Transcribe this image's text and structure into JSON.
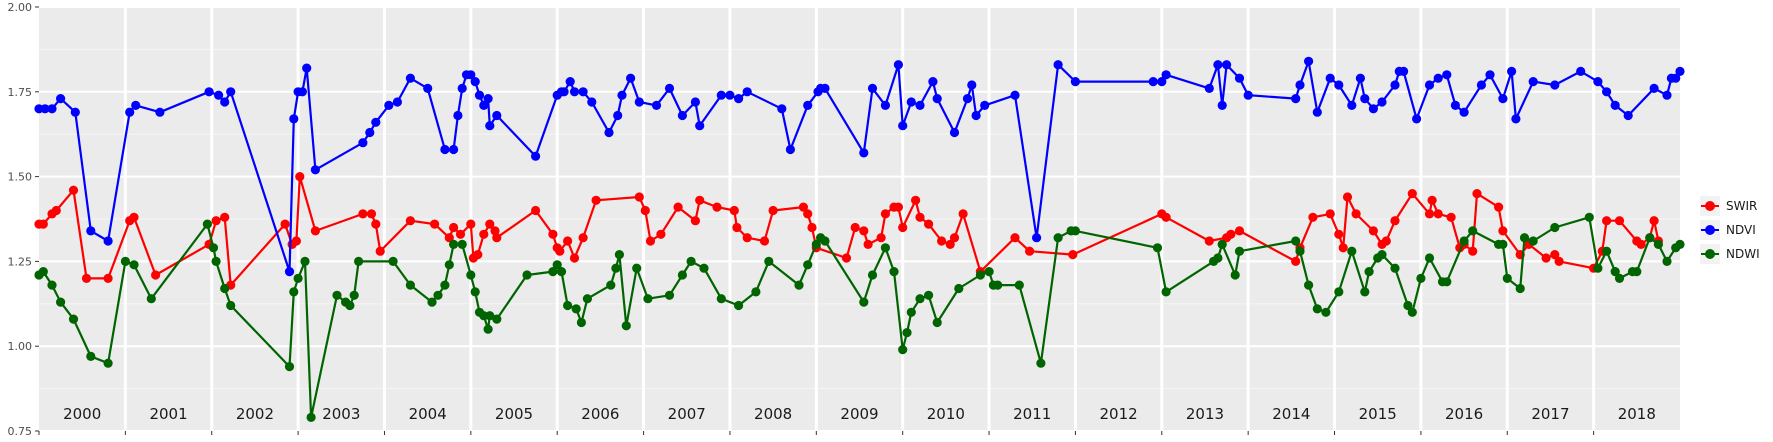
{
  "chart_data": {
    "type": "line",
    "title": "",
    "xlabel": "",
    "ylabel": "",
    "xlim": [
      2000,
      2019
    ],
    "ylim": [
      0.75,
      2.0
    ],
    "y_ticks": [
      "0.75",
      "1.00",
      "1.25",
      "1.50",
      "1.75",
      "2.00"
    ],
    "year_labels": [
      "2000",
      "2001",
      "2002",
      "2003",
      "2004",
      "2005",
      "2006",
      "2007",
      "2008",
      "2009",
      "2010",
      "2011",
      "2012",
      "2013",
      "2014",
      "2015",
      "2016",
      "2017",
      "2018"
    ],
    "grid": true,
    "legend_position": "right",
    "background": "#ebebeb",
    "series": [
      {
        "name": "SWIR",
        "color": "#ff0000",
        "x": [
          2000.0,
          2000.05,
          2000.15,
          2000.2,
          2000.4,
          2000.55,
          2000.8,
          2001.05,
          2001.1,
          2001.35,
          2001.97,
          2002.05,
          2002.15,
          2002.22,
          2002.85,
          2002.93,
          2002.98,
          2003.02,
          2003.2,
          2003.75,
          2003.85,
          2003.9,
          2003.95,
          2004.3,
          2004.58,
          2004.75,
          2004.8,
          2004.88,
          2005.0,
          2005.03,
          2005.08,
          2005.15,
          2005.22,
          2005.28,
          2005.3,
          2005.75,
          2005.95,
          2006.0,
          2006.03,
          2006.12,
          2006.2,
          2006.3,
          2006.45,
          2006.95,
          2007.02,
          2007.08,
          2007.2,
          2007.4,
          2007.6,
          2007.65,
          2007.85,
          2008.05,
          2008.08,
          2008.2,
          2008.4,
          2008.5,
          2008.85,
          2008.9,
          2008.95,
          2009.0,
          2009.35,
          2009.45,
          2009.55,
          2009.6,
          2009.75,
          2009.8,
          2009.9,
          2009.95,
          2010.0,
          2010.15,
          2010.2,
          2010.3,
          2010.45,
          2010.55,
          2010.6,
          2010.7,
          2010.9,
          2011.3,
          2011.47,
          2011.97,
          2013.0,
          2013.05,
          2013.55,
          2013.75,
          2013.8,
          2013.9,
          2014.55,
          2014.6,
          2014.75,
          2014.95,
          2015.05,
          2015.1,
          2015.15,
          2015.25,
          2015.45,
          2015.55,
          2015.6,
          2015.7,
          2015.9,
          2016.1,
          2016.13,
          2016.2,
          2016.35,
          2016.45,
          2016.5,
          2016.6,
          2016.65,
          2016.9,
          2016.95,
          2017.15,
          2017.25,
          2017.45,
          2017.55,
          2017.6,
          2018.0,
          2018.1,
          2018.15,
          2018.3,
          2018.5,
          2018.55,
          2018.65,
          2018.7,
          2018.75
        ],
        "y": [
          1.36,
          1.36,
          1.39,
          1.4,
          1.46,
          1.2,
          1.2,
          1.37,
          1.38,
          1.21,
          1.3,
          1.37,
          1.38,
          1.18,
          1.36,
          1.3,
          1.31,
          1.5,
          1.34,
          1.39,
          1.39,
          1.36,
          1.28,
          1.37,
          1.36,
          1.32,
          1.35,
          1.33,
          1.36,
          1.26,
          1.27,
          1.33,
          1.36,
          1.34,
          1.32,
          1.4,
          1.33,
          1.29,
          1.28,
          1.31,
          1.26,
          1.32,
          1.43,
          1.44,
          1.4,
          1.31,
          1.33,
          1.41,
          1.37,
          1.43,
          1.41,
          1.4,
          1.35,
          1.32,
          1.31,
          1.4,
          1.41,
          1.39,
          1.35,
          1.29,
          1.26,
          1.35,
          1.34,
          1.3,
          1.32,
          1.39,
          1.41,
          1.41,
          1.35,
          1.43,
          1.38,
          1.36,
          1.31,
          1.3,
          1.32,
          1.39,
          1.22,
          1.32,
          1.28,
          1.27,
          1.39,
          1.38,
          1.31,
          1.32,
          1.33,
          1.34,
          1.25,
          1.29,
          1.38,
          1.39,
          1.33,
          1.29,
          1.44,
          1.39,
          1.34,
          1.3,
          1.31,
          1.37,
          1.45,
          1.39,
          1.43,
          1.39,
          1.38,
          1.29,
          1.3,
          1.28,
          1.45,
          1.41,
          1.34,
          1.27,
          1.3,
          1.26,
          1.27,
          1.25,
          1.23,
          1.28,
          1.37,
          1.37,
          1.31,
          1.3,
          1.32,
          1.37,
          1.31
        ]
      },
      {
        "name": "NDVI",
        "color": "#0000ff",
        "x": [
          2000.0,
          2000.07,
          2000.15,
          2000.25,
          2000.42,
          2000.6,
          2000.8,
          2001.05,
          2001.12,
          2001.4,
          2001.97,
          2002.08,
          2002.15,
          2002.22,
          2002.9,
          2002.95,
          2003.0,
          2003.05,
          2003.1,
          2003.2,
          2003.75,
          2003.83,
          2003.9,
          2004.05,
          2004.15,
          2004.3,
          2004.5,
          2004.7,
          2004.8,
          2004.85,
          2004.9,
          2004.95,
          2005.0,
          2005.05,
          2005.1,
          2005.15,
          2005.2,
          2005.22,
          2005.3,
          2005.75,
          2006.0,
          2006.05,
          2006.08,
          2006.15,
          2006.2,
          2006.3,
          2006.4,
          2006.6,
          2006.7,
          2006.75,
          2006.85,
          2006.95,
          2007.15,
          2007.3,
          2007.45,
          2007.6,
          2007.65,
          2007.9,
          2008.0,
          2008.1,
          2008.2,
          2008.6,
          2008.7,
          2008.9,
          2009.02,
          2009.05,
          2009.1,
          2009.55,
          2009.65,
          2009.8,
          2009.95,
          2010.0,
          2010.1,
          2010.2,
          2010.35,
          2010.4,
          2010.6,
          2010.75,
          2010.8,
          2010.85,
          2010.95,
          2011.3,
          2011.55,
          2011.8,
          2012.0,
          2012.9,
          2013.0,
          2013.05,
          2013.55,
          2013.65,
          2013.7,
          2013.75,
          2013.9,
          2014.0,
          2014.55,
          2014.6,
          2014.7,
          2014.8,
          2014.95,
          2015.05,
          2015.2,
          2015.3,
          2015.35,
          2015.45,
          2015.55,
          2015.7,
          2015.75,
          2015.8,
          2015.95,
          2016.1,
          2016.2,
          2016.3,
          2016.4,
          2016.5,
          2016.7,
          2016.8,
          2016.95,
          2017.05,
          2017.1,
          2017.3,
          2017.55,
          2017.85,
          2018.05,
          2018.15,
          2018.25,
          2018.4,
          2018.7,
          2018.85,
          2018.9,
          2018.95,
          2019.0
        ],
        "y": [
          1.7,
          1.7,
          1.7,
          1.73,
          1.69,
          1.34,
          1.31,
          1.69,
          1.71,
          1.69,
          1.75,
          1.74,
          1.72,
          1.75,
          1.22,
          1.67,
          1.75,
          1.75,
          1.82,
          1.52,
          1.6,
          1.63,
          1.66,
          1.71,
          1.72,
          1.79,
          1.76,
          1.58,
          1.58,
          1.68,
          1.76,
          1.8,
          1.8,
          1.78,
          1.74,
          1.71,
          1.73,
          1.65,
          1.68,
          1.56,
          1.74,
          1.75,
          1.75,
          1.78,
          1.75,
          1.75,
          1.72,
          1.63,
          1.68,
          1.74,
          1.79,
          1.72,
          1.71,
          1.76,
          1.68,
          1.72,
          1.65,
          1.74,
          1.74,
          1.73,
          1.75,
          1.7,
          1.58,
          1.71,
          1.75,
          1.76,
          1.76,
          1.57,
          1.76,
          1.71,
          1.83,
          1.65,
          1.72,
          1.71,
          1.78,
          1.73,
          1.63,
          1.73,
          1.77,
          1.68,
          1.71,
          1.74,
          1.32,
          1.83,
          1.78,
          1.78,
          1.78,
          1.8,
          1.76,
          1.83,
          1.71,
          1.83,
          1.79,
          1.74,
          1.73,
          1.77,
          1.84,
          1.69,
          1.79,
          1.77,
          1.71,
          1.79,
          1.73,
          1.7,
          1.72,
          1.77,
          1.81,
          1.81,
          1.67,
          1.77,
          1.79,
          1.8,
          1.71,
          1.69,
          1.77,
          1.8,
          1.73,
          1.81,
          1.67,
          1.78,
          1.77,
          1.81,
          1.78,
          1.75,
          1.71,
          1.68,
          1.76,
          1.74,
          1.79,
          1.79,
          1.81
        ]
      },
      {
        "name": "NDWI",
        "color": "#006400",
        "x": [
          2000.0,
          2000.05,
          2000.15,
          2000.25,
          2000.4,
          2000.6,
          2000.8,
          2001.0,
          2001.1,
          2001.3,
          2001.95,
          2002.02,
          2002.05,
          2002.15,
          2002.22,
          2002.9,
          2002.95,
          2003.0,
          2003.08,
          2003.15,
          2003.45,
          2003.55,
          2003.6,
          2003.65,
          2003.7,
          2004.1,
          2004.3,
          2004.55,
          2004.62,
          2004.7,
          2004.75,
          2004.8,
          2004.9,
          2005.0,
          2005.05,
          2005.1,
          2005.15,
          2005.2,
          2005.22,
          2005.3,
          2005.65,
          2005.95,
          2006.0,
          2006.05,
          2006.12,
          2006.22,
          2006.28,
          2006.35,
          2006.62,
          2006.68,
          2006.72,
          2006.8,
          2006.92,
          2007.05,
          2007.3,
          2007.45,
          2007.55,
          2007.7,
          2007.9,
          2008.1,
          2008.3,
          2008.45,
          2008.8,
          2008.9,
          2009.0,
          2009.05,
          2009.1,
          2009.55,
          2009.65,
          2009.8,
          2009.9,
          2010.0,
          2010.05,
          2010.1,
          2010.2,
          2010.3,
          2010.4,
          2010.65,
          2010.9,
          2011.0,
          2011.05,
          2011.1,
          2011.35,
          2011.6,
          2011.8,
          2011.95,
          2012.0,
          2012.95,
          2013.05,
          2013.6,
          2013.65,
          2013.7,
          2013.85,
          2013.9,
          2014.55,
          2014.6,
          2014.7,
          2014.8,
          2014.9,
          2015.05,
          2015.2,
          2015.35,
          2015.4,
          2015.5,
          2015.55,
          2015.7,
          2015.85,
          2015.9,
          2016.0,
          2016.1,
          2016.25,
          2016.3,
          2016.5,
          2016.6,
          2016.9,
          2016.95,
          2017.0,
          2017.15,
          2017.2,
          2017.3,
          2017.55,
          2017.95,
          2018.05,
          2018.15,
          2018.25,
          2018.3,
          2018.45,
          2018.5,
          2018.65,
          2018.75,
          2018.85,
          2018.95,
          2019.0
        ],
        "y": [
          1.21,
          1.22,
          1.18,
          1.13,
          1.08,
          0.97,
          0.95,
          1.25,
          1.24,
          1.14,
          1.36,
          1.29,
          1.25,
          1.17,
          1.12,
          0.94,
          1.16,
          1.2,
          1.25,
          0.79,
          1.15,
          1.13,
          1.12,
          1.15,
          1.25,
          1.25,
          1.18,
          1.13,
          1.15,
          1.18,
          1.24,
          1.3,
          1.3,
          1.21,
          1.16,
          1.1,
          1.09,
          1.05,
          1.09,
          1.08,
          1.21,
          1.22,
          1.24,
          1.22,
          1.12,
          1.11,
          1.07,
          1.14,
          1.18,
          1.23,
          1.27,
          1.06,
          1.23,
          1.14,
          1.15,
          1.21,
          1.25,
          1.23,
          1.14,
          1.12,
          1.16,
          1.25,
          1.18,
          1.24,
          1.3,
          1.32,
          1.31,
          1.13,
          1.21,
          1.29,
          1.22,
          0.99,
          1.04,
          1.1,
          1.14,
          1.15,
          1.07,
          1.17,
          1.21,
          1.22,
          1.18,
          1.18,
          1.18,
          0.95,
          1.32,
          1.34,
          1.34,
          1.29,
          1.16,
          1.25,
          1.26,
          1.3,
          1.21,
          1.28,
          1.31,
          1.28,
          1.18,
          1.11,
          1.1,
          1.16,
          1.28,
          1.16,
          1.22,
          1.26,
          1.27,
          1.23,
          1.12,
          1.1,
          1.2,
          1.26,
          1.19,
          1.19,
          1.31,
          1.34,
          1.3,
          1.3,
          1.2,
          1.17,
          1.32,
          1.31,
          1.35,
          1.38,
          1.23,
          1.28,
          1.22,
          1.2,
          1.22,
          1.22,
          1.32,
          1.3,
          1.25,
          1.29,
          1.3
        ]
      }
    ]
  }
}
